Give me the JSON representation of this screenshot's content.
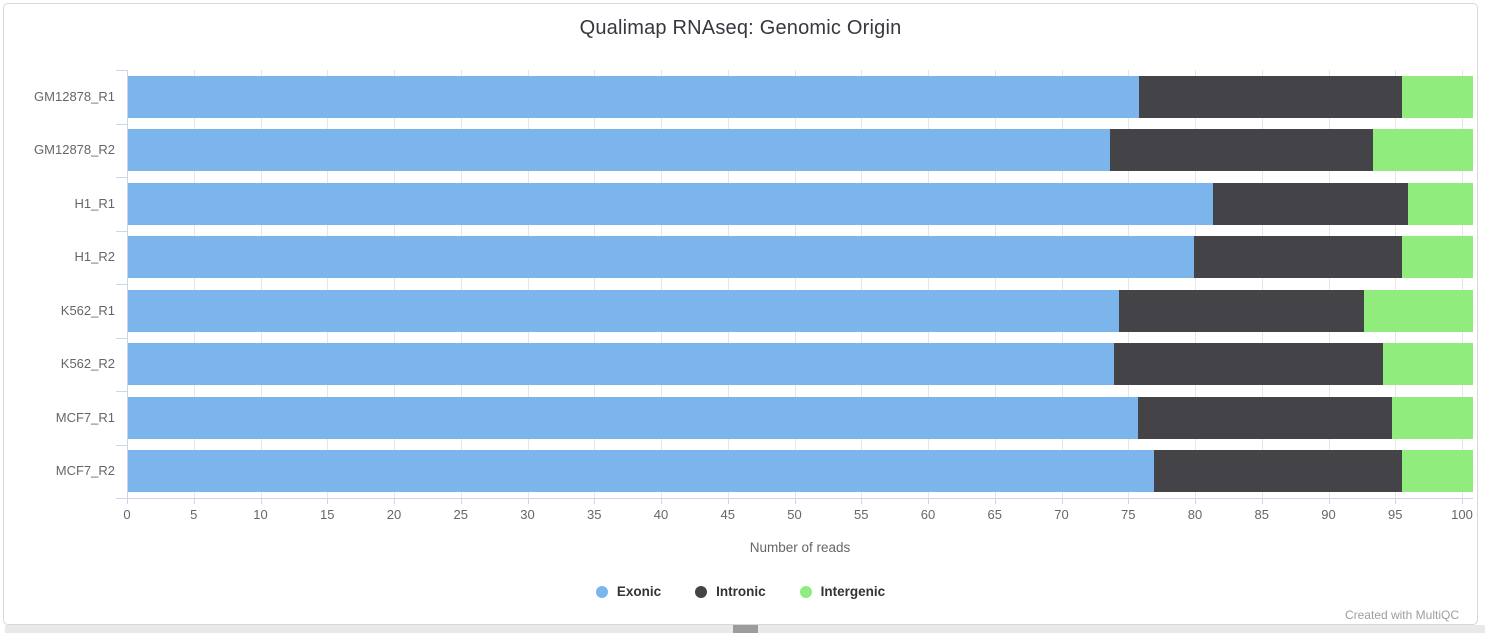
{
  "header": {
    "title": "Qualimap RNAseq: Genomic Origin"
  },
  "chart_data": {
    "type": "bar",
    "orientation": "horizontal",
    "stacked": true,
    "title": "Qualimap RNAseq: Genomic Origin",
    "categories": [
      "GM12878_R1",
      "GM12878_R2",
      "H1_R1",
      "H1_R2",
      "K562_R1",
      "K562_R2",
      "MCF7_R1",
      "MCF7_R2"
    ],
    "series": [
      {
        "name": "Exonic",
        "color": "#7cb5ec",
        "values": [
          75.2,
          73.0,
          80.7,
          79.3,
          73.7,
          73.3,
          75.1,
          76.3
        ]
      },
      {
        "name": "Intronic",
        "color": "#434348",
        "values": [
          19.5,
          19.6,
          14.5,
          15.4,
          18.2,
          20.0,
          18.9,
          18.4
        ]
      },
      {
        "name": "Intergenic",
        "color": "#90ed7d",
        "values": [
          5.3,
          7.4,
          4.8,
          5.3,
          8.1,
          6.7,
          6.0,
          5.3
        ]
      }
    ],
    "xlabel": "Number of reads",
    "ylabel": "",
    "xlim": [
      0,
      100
    ],
    "xticks": [
      0,
      5,
      10,
      15,
      20,
      25,
      30,
      35,
      40,
      45,
      50,
      55,
      60,
      65,
      70,
      75,
      80,
      85,
      90,
      95,
      100
    ],
    "grid": true,
    "legend_position": "bottom",
    "axis_color": "#ccd6eb",
    "grid_color": "#e6e6e6",
    "tick_label_color": "#666666"
  },
  "footer": {
    "credit": "Created with MultiQC"
  }
}
